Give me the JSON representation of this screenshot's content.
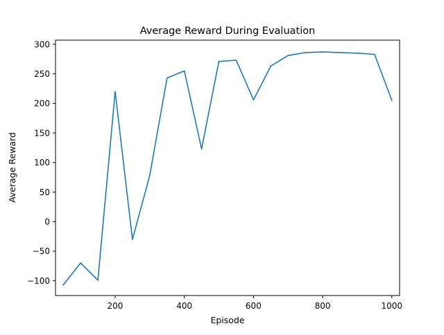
{
  "chart_data": {
    "type": "line",
    "title": "Average Reward During Evaluation",
    "xlabel": "Episode",
    "ylabel": "Average Reward",
    "xlim": [
      27.5,
      1022.5
    ],
    "ylim": [
      -125,
      307
    ],
    "xticks": [
      200,
      400,
      600,
      800,
      1000
    ],
    "yticks": [
      -100,
      -50,
      0,
      50,
      100,
      150,
      200,
      250,
      300
    ],
    "grid": false,
    "series": [
      {
        "color": "#1f77b4",
        "x": [
          50,
          100,
          150,
          200,
          250,
          300,
          350,
          400,
          450,
          500,
          550,
          600,
          650,
          700,
          750,
          800,
          850,
          900,
          950,
          1000
        ],
        "y": [
          -107,
          -70,
          -99,
          220,
          -30,
          78,
          243,
          255,
          123,
          271,
          273,
          206,
          263,
          281,
          286,
          287,
          286,
          285,
          283,
          205
        ]
      }
    ]
  }
}
